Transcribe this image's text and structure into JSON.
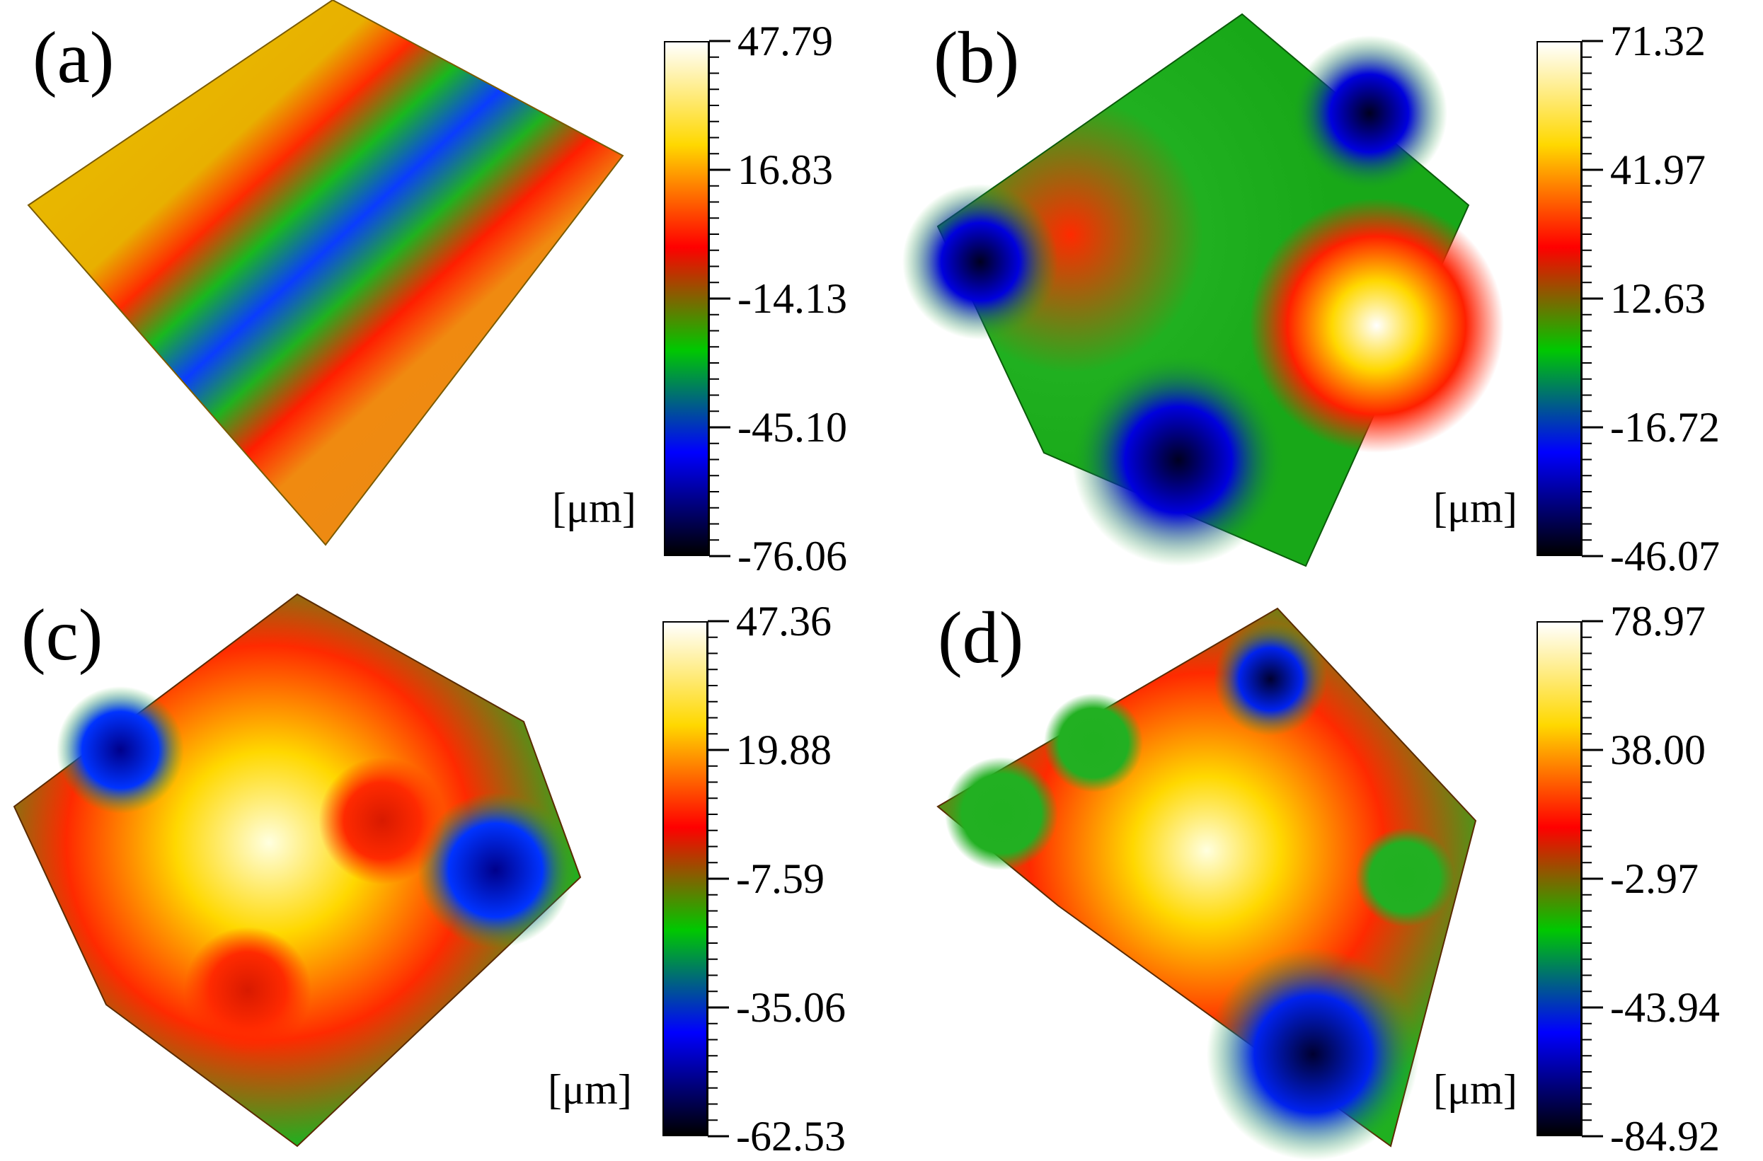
{
  "colormap": [
    "#000000",
    "#0000ff",
    "#00c800",
    "#ff0000",
    "#ffd800",
    "#ffffff"
  ],
  "panels": [
    {
      "id": "a",
      "label": "(a)",
      "unit": "[μm]",
      "scale": [
        "47.79",
        "16.83",
        "-14.13",
        "-45.10",
        "-76.06"
      ],
      "surface_icon": "height-map-surface"
    },
    {
      "id": "b",
      "label": "(b)",
      "unit": "[μm]",
      "scale": [
        "71.32",
        "41.97",
        "12.63",
        "-16.72",
        "-46.07"
      ],
      "surface_icon": "height-map-surface"
    },
    {
      "id": "c",
      "label": "(c)",
      "unit": "[μm]",
      "scale": [
        "47.36",
        "19.88",
        "-7.59",
        "-35.06",
        "-62.53"
      ],
      "surface_icon": "height-map-surface"
    },
    {
      "id": "d",
      "label": "(d)",
      "unit": "[μm]",
      "scale": [
        "78.97",
        "38.00",
        "-2.97",
        "-43.94",
        "-84.92"
      ],
      "surface_icon": "height-map-surface"
    }
  ]
}
